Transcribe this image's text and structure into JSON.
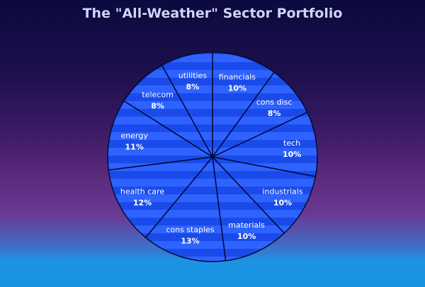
{
  "chart_data": {
    "type": "pie",
    "title": "The \"All-Weather\" Sector Portfolio",
    "slices": [
      {
        "label": "financials",
        "value": 10,
        "value_label": "10%"
      },
      {
        "label": "cons disc",
        "value": 8,
        "value_label": "8%"
      },
      {
        "label": "tech",
        "value": 10,
        "value_label": "10%"
      },
      {
        "label": "industrials",
        "value": 10,
        "value_label": "10%"
      },
      {
        "label": "materials",
        "value": 10,
        "value_label": "10%"
      },
      {
        "label": "cons staples",
        "value": 13,
        "value_label": "13%"
      },
      {
        "label": "health care",
        "value": 12,
        "value_label": "12%"
      },
      {
        "label": "energy",
        "value": 11,
        "value_label": "11%"
      },
      {
        "label": "telecom",
        "value": 8,
        "value_label": "8%"
      },
      {
        "label": "utilities",
        "value": 8,
        "value_label": "8%"
      }
    ],
    "start_angle_deg": 0,
    "direction": "clockwise",
    "colors": {
      "slice_fill": "#1a4bea",
      "slice_stripe": "#2e63ff",
      "slice_border": "#000a38",
      "label_text": "#ffffff",
      "title_text": "#cfd2ff"
    }
  }
}
